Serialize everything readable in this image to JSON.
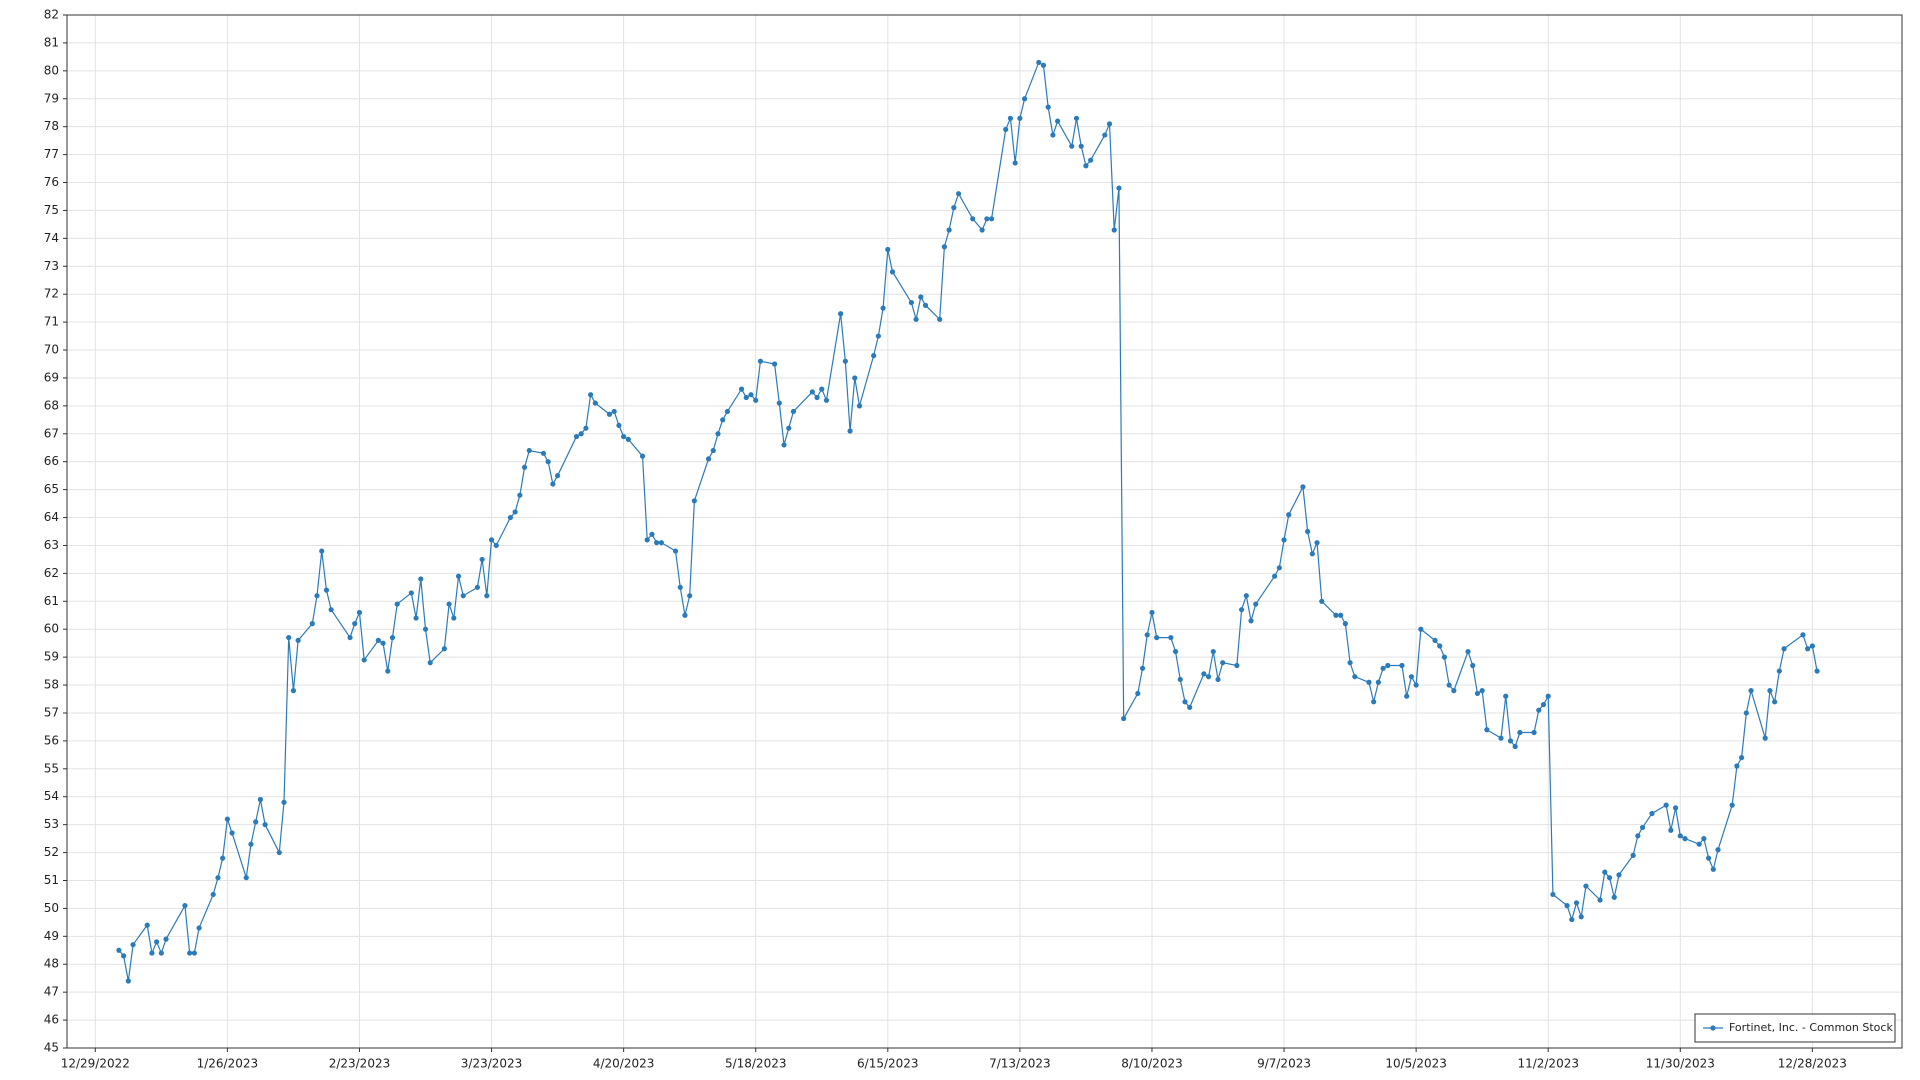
{
  "chart_data": {
    "type": "line",
    "x": [
      "1/3/2023",
      "1/4/2023",
      "1/5/2023",
      "1/6/2023",
      "1/9/2023",
      "1/10/2023",
      "1/11/2023",
      "1/12/2023",
      "1/13/2023",
      "1/17/2023",
      "1/18/2023",
      "1/19/2023",
      "1/20/2023",
      "1/23/2023",
      "1/24/2023",
      "1/25/2023",
      "1/26/2023",
      "1/27/2023",
      "1/30/2023",
      "1/31/2023",
      "2/1/2023",
      "2/2/2023",
      "2/3/2023",
      "2/6/2023",
      "2/7/2023",
      "2/8/2023",
      "2/9/2023",
      "2/10/2023",
      "2/13/2023",
      "2/14/2023",
      "2/15/2023",
      "2/16/2023",
      "2/17/2023",
      "2/21/2023",
      "2/22/2023",
      "2/23/2023",
      "2/24/2023",
      "2/27/2023",
      "2/28/2023",
      "3/1/2023",
      "3/2/2023",
      "3/3/2023",
      "3/6/2023",
      "3/7/2023",
      "3/8/2023",
      "3/9/2023",
      "3/10/2023",
      "3/13/2023",
      "3/14/2023",
      "3/15/2023",
      "3/16/2023",
      "3/17/2023",
      "3/20/2023",
      "3/21/2023",
      "3/22/2023",
      "3/23/2023",
      "3/24/2023",
      "3/27/2023",
      "3/28/2023",
      "3/29/2023",
      "3/30/2023",
      "3/31/2023",
      "4/3/2023",
      "4/4/2023",
      "4/5/2023",
      "4/6/2023",
      "4/10/2023",
      "4/11/2023",
      "4/12/2023",
      "4/13/2023",
      "4/14/2023",
      "4/17/2023",
      "4/18/2023",
      "4/19/2023",
      "4/20/2023",
      "4/21/2023",
      "4/24/2023",
      "4/25/2023",
      "4/26/2023",
      "4/27/2023",
      "4/28/2023",
      "5/1/2023",
      "5/2/2023",
      "5/3/2023",
      "5/4/2023",
      "5/5/2023",
      "5/8/2023",
      "5/9/2023",
      "5/10/2023",
      "5/11/2023",
      "5/12/2023",
      "5/15/2023",
      "5/16/2023",
      "5/17/2023",
      "5/18/2023",
      "5/19/2023",
      "5/22/2023",
      "5/23/2023",
      "5/24/2023",
      "5/25/2023",
      "5/26/2023",
      "5/30/2023",
      "5/31/2023",
      "6/1/2023",
      "6/2/2023",
      "6/5/2023",
      "6/6/2023",
      "6/7/2023",
      "6/8/2023",
      "6/9/2023",
      "6/12/2023",
      "6/13/2023",
      "6/14/2023",
      "6/15/2023",
      "6/16/2023",
      "6/20/2023",
      "6/21/2023",
      "6/22/2023",
      "6/23/2023",
      "6/26/2023",
      "6/27/2023",
      "6/28/2023",
      "6/29/2023",
      "6/30/2023",
      "7/3/2023",
      "7/5/2023",
      "7/6/2023",
      "7/7/2023",
      "7/10/2023",
      "7/11/2023",
      "7/12/2023",
      "7/13/2023",
      "7/14/2023",
      "7/17/2023",
      "7/18/2023",
      "7/19/2023",
      "7/20/2023",
      "7/21/2023",
      "7/24/2023",
      "7/25/2023",
      "7/26/2023",
      "7/27/2023",
      "7/28/2023",
      "7/31/2023",
      "8/1/2023",
      "8/2/2023",
      "8/3/2023",
      "8/4/2023",
      "8/7/2023",
      "8/8/2023",
      "8/9/2023",
      "8/10/2023",
      "8/11/2023",
      "8/14/2023",
      "8/15/2023",
      "8/16/2023",
      "8/17/2023",
      "8/18/2023",
      "8/21/2023",
      "8/22/2023",
      "8/23/2023",
      "8/24/2023",
      "8/25/2023",
      "8/28/2023",
      "8/29/2023",
      "8/30/2023",
      "8/31/2023",
      "9/1/2023",
      "9/5/2023",
      "9/6/2023",
      "9/7/2023",
      "9/8/2023",
      "9/11/2023",
      "9/12/2023",
      "9/13/2023",
      "9/14/2023",
      "9/15/2023",
      "9/18/2023",
      "9/19/2023",
      "9/20/2023",
      "9/21/2023",
      "9/22/2023",
      "9/25/2023",
      "9/26/2023",
      "9/27/2023",
      "9/28/2023",
      "9/29/2023",
      "10/2/2023",
      "10/3/2023",
      "10/4/2023",
      "10/5/2023",
      "10/6/2023",
      "10/9/2023",
      "10/10/2023",
      "10/11/2023",
      "10/12/2023",
      "10/13/2023",
      "10/16/2023",
      "10/17/2023",
      "10/18/2023",
      "10/19/2023",
      "10/20/2023",
      "10/23/2023",
      "10/24/2023",
      "10/25/2023",
      "10/26/2023",
      "10/27/2023",
      "10/30/2023",
      "10/31/2023",
      "11/1/2023",
      "11/2/2023",
      "11/3/2023",
      "11/6/2023",
      "11/7/2023",
      "11/8/2023",
      "11/9/2023",
      "11/10/2023",
      "11/13/2023",
      "11/14/2023",
      "11/15/2023",
      "11/16/2023",
      "11/17/2023",
      "11/20/2023",
      "11/21/2023",
      "11/22/2023",
      "11/24/2023",
      "11/27/2023",
      "11/28/2023",
      "11/29/2023",
      "11/30/2023",
      "12/1/2023",
      "12/4/2023",
      "12/5/2023",
      "12/6/2023",
      "12/7/2023",
      "12/8/2023",
      "12/11/2023",
      "12/12/2023",
      "12/13/2023",
      "12/14/2023",
      "12/15/2023",
      "12/18/2023",
      "12/19/2023",
      "12/20/2023",
      "12/21/2023",
      "12/22/2023",
      "12/26/2023",
      "12/27/2023",
      "12/28/2023",
      "12/29/2023"
    ],
    "series": [
      {
        "name": "Fortinet, Inc. - Common Stock",
        "color": "#2b7bba",
        "values": [
          48.5,
          48.3,
          47.4,
          48.7,
          49.4,
          48.4,
          48.8,
          48.4,
          48.9,
          50.1,
          48.4,
          48.4,
          49.3,
          50.5,
          51.1,
          51.8,
          53.2,
          52.7,
          51.1,
          52.3,
          53.1,
          53.9,
          53.0,
          52.0,
          53.8,
          59.7,
          57.8,
          59.6,
          60.2,
          61.2,
          62.8,
          61.4,
          60.7,
          59.7,
          60.2,
          60.6,
          58.9,
          59.6,
          59.5,
          58.5,
          59.7,
          60.9,
          61.3,
          60.4,
          61.8,
          60.0,
          58.8,
          59.3,
          60.9,
          60.4,
          61.9,
          61.2,
          61.5,
          62.5,
          61.2,
          63.2,
          63.0,
          64.0,
          64.2,
          64.8,
          65.8,
          66.4,
          66.3,
          66.0,
          65.2,
          65.5,
          66.9,
          67.0,
          67.2,
          68.4,
          68.1,
          67.7,
          67.8,
          67.3,
          66.9,
          66.8,
          66.2,
          63.2,
          63.4,
          63.1,
          63.1,
          62.8,
          61.5,
          60.5,
          61.2,
          64.6,
          66.1,
          66.4,
          67.0,
          67.5,
          67.8,
          68.6,
          68.3,
          68.4,
          68.2,
          69.6,
          69.5,
          68.1,
          66.6,
          67.2,
          67.8,
          68.5,
          68.3,
          68.6,
          68.2,
          71.3,
          69.6,
          67.1,
          69.0,
          68.0,
          69.8,
          70.5,
          71.5,
          73.6,
          72.8,
          71.7,
          71.1,
          71.9,
          71.6,
          71.1,
          73.7,
          74.3,
          75.1,
          75.6,
          74.7,
          74.3,
          74.7,
          74.7,
          77.9,
          78.3,
          76.7,
          78.3,
          79.0,
          80.3,
          80.2,
          78.7,
          77.7,
          78.2,
          77.3,
          78.3,
          77.3,
          76.6,
          76.8,
          77.7,
          78.1,
          74.3,
          75.8,
          56.8,
          57.7,
          58.6,
          59.8,
          60.6,
          59.7,
          59.7,
          59.2,
          58.2,
          57.4,
          57.2,
          58.4,
          58.3,
          59.2,
          58.2,
          58.8,
          58.7,
          60.7,
          61.2,
          60.3,
          60.9,
          61.9,
          62.2,
          63.2,
          64.1,
          65.1,
          63.5,
          62.7,
          63.1,
          61.0,
          60.5,
          60.5,
          60.2,
          58.8,
          58.3,
          58.1,
          57.4,
          58.1,
          58.6,
          58.7,
          58.7,
          57.6,
          58.3,
          58.0,
          60.0,
          59.6,
          59.4,
          59.0,
          58.0,
          57.8,
          59.2,
          58.7,
          57.7,
          57.8,
          56.4,
          56.1,
          57.6,
          56.0,
          55.8,
          56.3,
          56.3,
          57.1,
          57.3,
          57.6,
          50.5,
          50.1,
          49.6,
          50.2,
          49.7,
          50.8,
          50.3,
          51.3,
          51.1,
          50.4,
          51.2,
          51.9,
          52.6,
          52.9,
          53.4,
          53.7,
          52.8,
          53.6,
          52.6,
          52.5,
          52.3,
          52.5,
          51.8,
          51.4,
          52.1,
          53.7,
          55.1,
          55.4,
          57.0,
          57.8,
          56.1,
          57.8,
          57.4,
          58.5,
          59.3,
          59.8,
          59.3,
          59.4,
          58.5
        ]
      }
    ],
    "xlim": [
      "12/23/2022",
      "1/16/2024"
    ],
    "xticks": [
      "12/29/2022",
      "1/26/2023",
      "2/23/2023",
      "3/23/2023",
      "4/20/2023",
      "5/18/2023",
      "6/15/2023",
      "7/13/2023",
      "8/10/2023",
      "9/7/2023",
      "10/5/2023",
      "11/2/2023",
      "11/30/2023",
      "12/28/2023"
    ],
    "ylim": [
      45,
      82
    ],
    "yticks": [
      45,
      46,
      47,
      48,
      49,
      50,
      51,
      52,
      53,
      54,
      55,
      56,
      57,
      58,
      59,
      60,
      61,
      62,
      63,
      64,
      65,
      66,
      67,
      68,
      69,
      70,
      71,
      72,
      73,
      74,
      75,
      76,
      77,
      78,
      79,
      80,
      81,
      82
    ],
    "grid": true,
    "legend": "lower right"
  }
}
